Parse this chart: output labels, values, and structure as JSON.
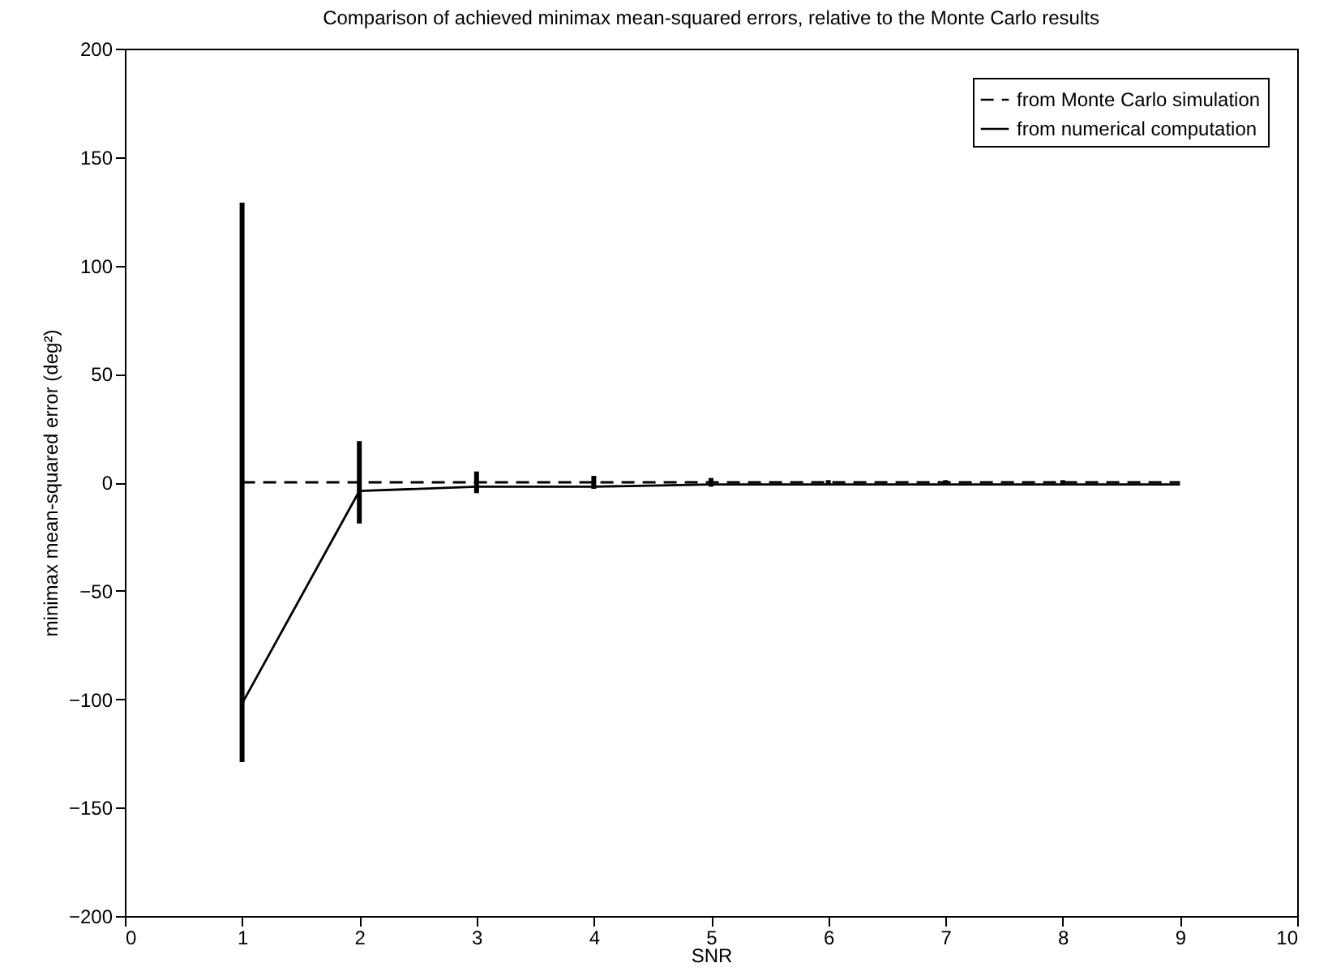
{
  "chart_data": {
    "type": "line",
    "title": "Comparison of achieved minimax mean-squared errors, relative to the Monte Carlo results",
    "xlabel": "SNR",
    "ylabel": "minimax mean-squared error (deg²)",
    "x": [
      1,
      2,
      3,
      4,
      5,
      6,
      7,
      8,
      9
    ],
    "series": [
      {
        "name": "from Monte Carlo simulation",
        "color": "#000000",
        "line_style": "dashed",
        "values": [
          0,
          0,
          0,
          0,
          0,
          0,
          0,
          0,
          0
        ],
        "errors": [
          129,
          19,
          5,
          3,
          2,
          1,
          1,
          1,
          null
        ]
      },
      {
        "name": "from numerical computation",
        "color": "#000000",
        "line_style": "solid",
        "values": [
          -102,
          -4,
          -2,
          -2,
          -1,
          -1,
          -1,
          -1,
          -1
        ]
      }
    ],
    "xlim": [
      0,
      10
    ],
    "xticks": [
      0,
      1,
      2,
      3,
      4,
      5,
      6,
      7,
      8,
      9,
      10
    ],
    "ylim": [
      -200,
      200
    ],
    "yticks": [
      -200,
      -150,
      -100,
      -50,
      0,
      50,
      100,
      150,
      200
    ],
    "legend": "top right",
    "grid": false,
    "marker": "none"
  }
}
